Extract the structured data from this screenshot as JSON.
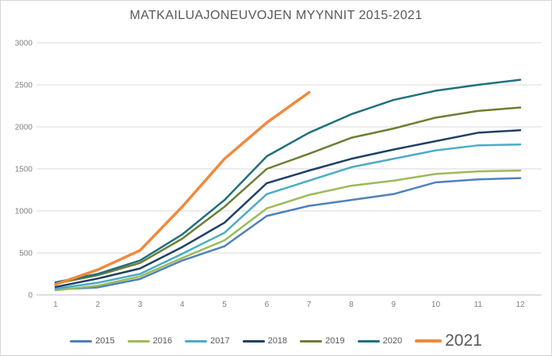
{
  "title": "MATKAILUAJONEUVOJEN MYYNNIT 2015-2021",
  "chart_data": {
    "type": "line",
    "title": "MATKAILUAJONEUVOJEN MYYNNIT 2015-2021",
    "xlabel": "",
    "ylabel": "",
    "x": [
      1,
      2,
      3,
      4,
      5,
      6,
      7,
      8,
      9,
      10,
      11,
      12
    ],
    "xlim": [
      1,
      12
    ],
    "ylim": [
      0,
      3000
    ],
    "y_ticks": [
      0,
      500,
      1000,
      1500,
      2000,
      2500,
      3000
    ],
    "grid": true,
    "legend_position": "bottom",
    "series": [
      {
        "name": "2015",
        "color": "#4E81BD",
        "width": 2.5,
        "emphasis": false,
        "values": [
          65,
          90,
          190,
          410,
          580,
          940,
          1060,
          1130,
          1200,
          1340,
          1375,
          1390
        ]
      },
      {
        "name": "2016",
        "color": "#9BBB59",
        "width": 2.5,
        "emphasis": false,
        "values": [
          55,
          110,
          220,
          440,
          650,
          1030,
          1190,
          1300,
          1360,
          1440,
          1470,
          1480
        ]
      },
      {
        "name": "2017",
        "color": "#4BACC6",
        "width": 2.5,
        "emphasis": false,
        "values": [
          75,
          145,
          250,
          490,
          740,
          1200,
          1360,
          1520,
          1620,
          1720,
          1780,
          1790
        ]
      },
      {
        "name": "2018",
        "color": "#1F4166",
        "width": 2.5,
        "emphasis": false,
        "values": [
          95,
          195,
          315,
          570,
          860,
          1330,
          1480,
          1620,
          1730,
          1830,
          1930,
          1960
        ]
      },
      {
        "name": "2019",
        "color": "#6A7F34",
        "width": 2.5,
        "emphasis": false,
        "values": [
          135,
          235,
          380,
          670,
          1050,
          1500,
          1680,
          1870,
          1980,
          2110,
          2190,
          2230
        ]
      },
      {
        "name": "2020",
        "color": "#21707E",
        "width": 2.5,
        "emphasis": false,
        "values": [
          150,
          250,
          410,
          720,
          1130,
          1650,
          1930,
          2150,
          2320,
          2430,
          2500,
          2560
        ]
      },
      {
        "name": "2021",
        "color": "#F0893C",
        "width": 3.5,
        "emphasis": true,
        "values": [
          125,
          300,
          530,
          1050,
          1620,
          2050,
          2410
        ]
      }
    ]
  },
  "colors": {
    "gridline": "#D9D9D9",
    "axis_line": "#BFBFBF",
    "tick_label": "#7F7F7F",
    "title_text": "#595959"
  }
}
